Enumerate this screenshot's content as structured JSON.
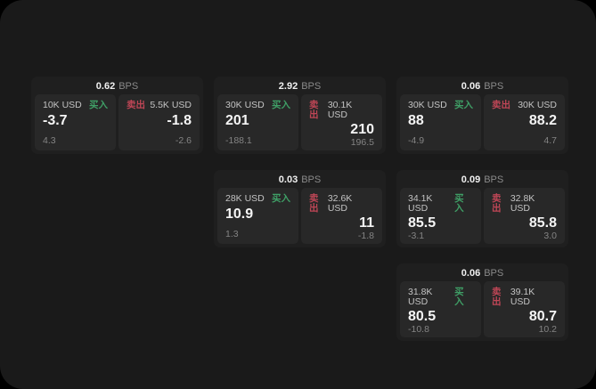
{
  "labels": {
    "buy": "买入",
    "sell": "卖出",
    "bps": "BPS"
  },
  "colors": {
    "green": "#3f9f66",
    "red": "#bf4656"
  },
  "cards": [
    {
      "bps": "0.62",
      "buy": {
        "amount": "10K USD",
        "value": "-3.7",
        "delta": "4.3"
      },
      "sell": {
        "amount": "5.5K USD",
        "value": "-1.8",
        "delta": "-2.6"
      }
    },
    {
      "bps": "2.92",
      "buy": {
        "amount": "30K USD",
        "value": "201",
        "delta": "-188.1"
      },
      "sell": {
        "amount": "30.1K USD",
        "value": "210",
        "delta": "196.5"
      }
    },
    {
      "bps": "0.06",
      "buy": {
        "amount": "30K USD",
        "value": "88",
        "delta": "-4.9"
      },
      "sell": {
        "amount": "30K USD",
        "value": "88.2",
        "delta": "4.7"
      }
    },
    {
      "bps": "0.03",
      "buy": {
        "amount": "28K USD",
        "value": "10.9",
        "delta": "1.3"
      },
      "sell": {
        "amount": "32.6K USD",
        "value": "11",
        "delta": "-1.8"
      }
    },
    {
      "bps": "0.09",
      "buy": {
        "amount": "34.1K USD",
        "value": "85.5",
        "delta": "-3.1"
      },
      "sell": {
        "amount": "32.8K USD",
        "value": "85.8",
        "delta": "3.0"
      }
    },
    {
      "bps": "0.06",
      "buy": {
        "amount": "31.8K USD",
        "value": "80.5",
        "delta": "-10.8"
      },
      "sell": {
        "amount": "39.1K USD",
        "value": "80.7",
        "delta": "10.2"
      }
    }
  ]
}
